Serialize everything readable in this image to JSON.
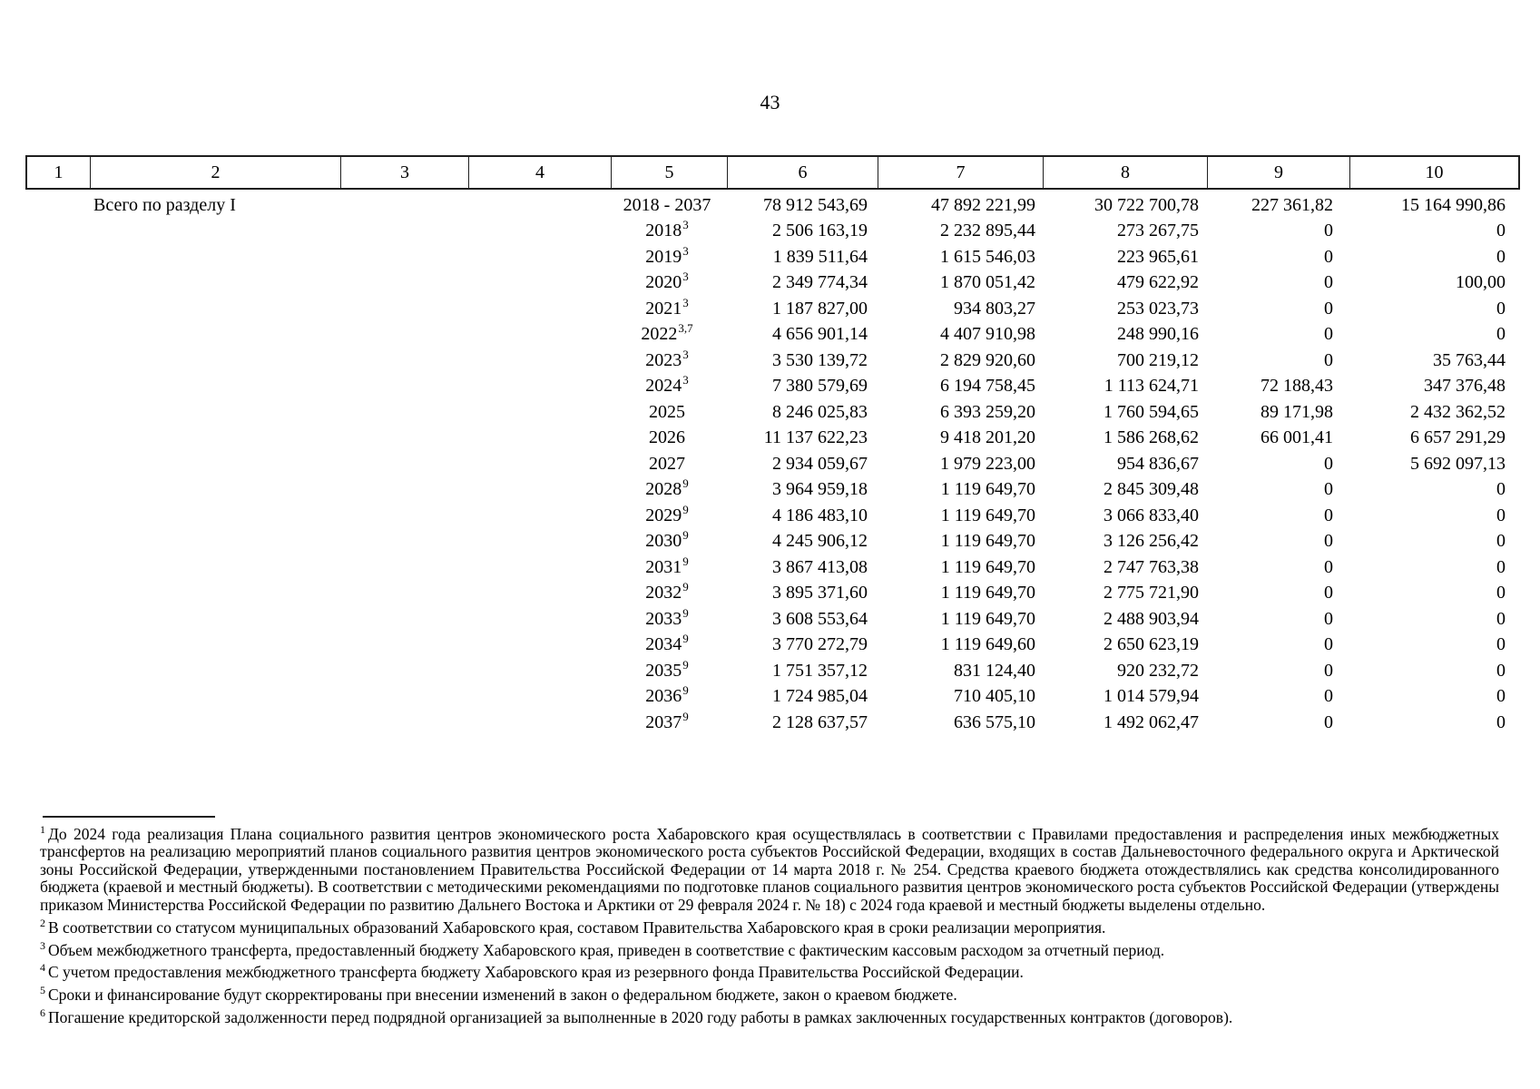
{
  "page": {
    "number": "43"
  },
  "table": {
    "header_cols": [
      "1",
      "2",
      "3",
      "4",
      "5",
      "6",
      "7",
      "8",
      "9",
      "10"
    ],
    "rows": [
      {
        "label": "Всего по разделу I",
        "period": "2018 - 2037",
        "sup": "",
        "c6": "78 912 543,69",
        "c7": "47 892 221,99",
        "c8": "30 722 700,78",
        "c9": "227 361,82",
        "c10": "15 164 990,86"
      },
      {
        "label": "",
        "period": "2018",
        "sup": "3",
        "c6": "2 506 163,19",
        "c7": "2 232 895,44",
        "c8": "273 267,75",
        "c9": "0",
        "c10": "0"
      },
      {
        "label": "",
        "period": "2019",
        "sup": "3",
        "c6": "1 839 511,64",
        "c7": "1 615 546,03",
        "c8": "223 965,61",
        "c9": "0",
        "c10": "0"
      },
      {
        "label": "",
        "period": "2020",
        "sup": "3",
        "c6": "2 349 774,34",
        "c7": "1 870 051,42",
        "c8": "479 622,92",
        "c9": "0",
        "c10": "100,00"
      },
      {
        "label": "",
        "period": "2021",
        "sup": "3",
        "c6": "1 187 827,00",
        "c7": "934 803,27",
        "c8": "253 023,73",
        "c9": "0",
        "c10": "0"
      },
      {
        "label": "",
        "period": "2022",
        "sup": "3,7",
        "c6": "4 656 901,14",
        "c7": "4 407 910,98",
        "c8": "248 990,16",
        "c9": "0",
        "c10": "0"
      },
      {
        "label": "",
        "period": "2023",
        "sup": "3",
        "c6": "3 530 139,72",
        "c7": "2 829 920,60",
        "c8": "700 219,12",
        "c9": "0",
        "c10": "35 763,44"
      },
      {
        "label": "",
        "period": "2024",
        "sup": "3",
        "c6": "7 380 579,69",
        "c7": "6 194 758,45",
        "c8": "1 113 624,71",
        "c9": "72 188,43",
        "c10": "347 376,48"
      },
      {
        "label": "",
        "period": "2025",
        "sup": "",
        "c6": "8 246 025,83",
        "c7": "6 393 259,20",
        "c8": "1 760 594,65",
        "c9": "89 171,98",
        "c10": "2 432 362,52"
      },
      {
        "label": "",
        "period": "2026",
        "sup": "",
        "c6": "11 137 622,23",
        "c7": "9 418 201,20",
        "c8": "1 586 268,62",
        "c9": "66 001,41",
        "c10": "6 657 291,29"
      },
      {
        "label": "",
        "period": "2027",
        "sup": "",
        "c6": "2 934 059,67",
        "c7": "1 979 223,00",
        "c8": "954 836,67",
        "c9": "0",
        "c10": "5 692 097,13"
      },
      {
        "label": "",
        "period": "2028",
        "sup": "9",
        "c6": "3 964 959,18",
        "c7": "1 119 649,70",
        "c8": "2 845 309,48",
        "c9": "0",
        "c10": "0"
      },
      {
        "label": "",
        "period": "2029",
        "sup": "9",
        "c6": "4 186 483,10",
        "c7": "1 119 649,70",
        "c8": "3 066 833,40",
        "c9": "0",
        "c10": "0"
      },
      {
        "label": "",
        "period": "2030",
        "sup": "9",
        "c6": "4 245 906,12",
        "c7": "1 119 649,70",
        "c8": "3 126 256,42",
        "c9": "0",
        "c10": "0"
      },
      {
        "label": "",
        "period": "2031",
        "sup": "9",
        "c6": "3 867 413,08",
        "c7": "1 119 649,70",
        "c8": "2 747 763,38",
        "c9": "0",
        "c10": "0"
      },
      {
        "label": "",
        "period": "2032",
        "sup": "9",
        "c6": "3 895 371,60",
        "c7": "1 119 649,70",
        "c8": "2 775 721,90",
        "c9": "0",
        "c10": "0"
      },
      {
        "label": "",
        "period": "2033",
        "sup": "9",
        "c6": "3 608 553,64",
        "c7": "1 119 649,70",
        "c8": "2 488 903,94",
        "c9": "0",
        "c10": "0"
      },
      {
        "label": "",
        "period": "2034",
        "sup": "9",
        "c6": "3 770 272,79",
        "c7": "1 119 649,60",
        "c8": "2 650 623,19",
        "c9": "0",
        "c10": "0"
      },
      {
        "label": "",
        "period": "2035",
        "sup": "9",
        "c6": "1 751 357,12",
        "c7": "831 124,40",
        "c8": "920 232,72",
        "c9": "0",
        "c10": "0"
      },
      {
        "label": "",
        "period": "2036",
        "sup": "9",
        "c6": "1 724 985,04",
        "c7": "710 405,10",
        "c8": "1 014 579,94",
        "c9": "0",
        "c10": "0"
      },
      {
        "label": "",
        "period": "2037",
        "sup": "9",
        "c6": "2 128 637,57",
        "c7": "636 575,10",
        "c8": "1 492 062,47",
        "c9": "0",
        "c10": "0"
      }
    ]
  },
  "footnotes": {
    "items": [
      {
        "marker": "1",
        "text": "До 2024 года реализация Плана социального развития центров экономического роста Хабаровского края осуществлялась в соответствии с Правилами предоставления и распределения иных межбюджетных трансфертов на реализацию мероприятий планов социального развития центров экономического роста субъектов Российской Федерации, входящих в состав Дальневосточного федерального округа и Арктической зоны Российской Федерации, утвержденными постановлением Правительства Российской Федерации от 14 марта 2018 г. № 254. Средства краевого бюджета отождествлялись как средства консолидированного бюджета (краевой и местный бюджеты). В соответствии с методическими рекомендациями по подготовке планов социального развития центров экономического роста субъектов Российской Федерации (утверждены приказом Министерства Российской Федерации по развитию Дальнего Востока и Арктики от 29 февраля 2024 г. № 18) с 2024 года краевой и местный бюджеты выделены отдельно."
      },
      {
        "marker": "2",
        "text": "В соответствии со статусом муниципальных образований Хабаровского края, составом Правительства Хабаровского края в сроки реализации мероприятия."
      },
      {
        "marker": "3",
        "text": "Объем межбюджетного трансферта, предоставленный бюджету Хабаровского края, приведен в соответствие с фактическим кассовым расходом за отчетный период."
      },
      {
        "marker": "4",
        "text": "С учетом предоставления межбюджетного трансферта бюджету Хабаровского края из резервного фонда Правительства Российской Федерации."
      },
      {
        "marker": "5",
        "text": "Сроки и финансирование будут скорректированы при внесении изменений в закон о федеральном бюджете, закон о краевом бюджете."
      },
      {
        "marker": "6",
        "text": "Погашение кредиторской задолженности перед подрядной организацией за выполненные в 2020 году работы в рамках заключенных государственных контрактов (договоров)."
      }
    ]
  }
}
